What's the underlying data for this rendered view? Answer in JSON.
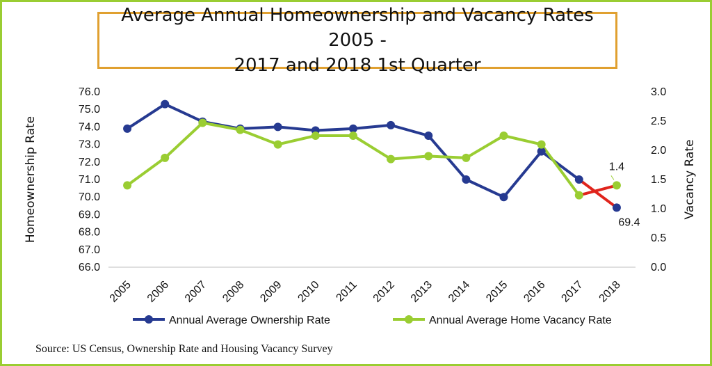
{
  "title": "Average Annual Homeownership and Vacancy Rates 2005 -\n2017 and 2018 1st Quarter",
  "source": "Source: US Census, Ownership Rate and Housing Vacancy Survey",
  "colors": {
    "ownership": "#263a91",
    "vacancy": "#9acd32",
    "highlight": "#e0241c",
    "frame": "#9acd32",
    "title_border": "#e0a030"
  },
  "chart_data": {
    "type": "line",
    "title": "Average Annual Homeownership and Vacancy Rates 2005 - 2017 and 2018 1st Quarter",
    "categories": [
      "2005",
      "2006",
      "2007",
      "2008",
      "2009",
      "2010",
      "2011",
      "2012",
      "2013",
      "2014",
      "2015",
      "2016",
      "2017",
      "2018"
    ],
    "ylabel": "Homeownership Rate",
    "ylabel_right": "Vacancy Rate",
    "ylim": [
      66.0,
      76.0
    ],
    "ylim_right": [
      0.0,
      3.0
    ],
    "yticks": [
      "76.0",
      "75.0",
      "74.0",
      "73.0",
      "72.0",
      "71.0",
      "70.0",
      "69.0",
      "68.0",
      "67.0",
      "66.0"
    ],
    "yticks_right": [
      "3.0",
      "2.5",
      "2.0",
      "1.5",
      "1.0",
      "0.5",
      "0.0"
    ],
    "series": [
      {
        "name": "Annual Average Ownership Rate",
        "axis": "left",
        "values": [
          73.9,
          75.3,
          74.3,
          73.9,
          74.0,
          73.8,
          73.9,
          74.1,
          73.5,
          71.0,
          70.0,
          72.6,
          71.0,
          69.4
        ]
      },
      {
        "name": "Annual Average Home Vacancy Rate",
        "axis": "right",
        "values": [
          1.4,
          1.87,
          2.47,
          2.35,
          2.1,
          2.25,
          2.25,
          1.85,
          1.9,
          1.87,
          2.25,
          2.1,
          1.23,
          1.4
        ]
      }
    ],
    "highlight_last_segment": true,
    "data_labels": [
      {
        "series": "Annual Average Ownership Rate",
        "category": "2018",
        "text": "69.4"
      },
      {
        "series": "Annual Average Home Vacancy Rate",
        "category": "2018",
        "text": "1.4"
      }
    ],
    "legend_position": "bottom",
    "grid": false
  }
}
